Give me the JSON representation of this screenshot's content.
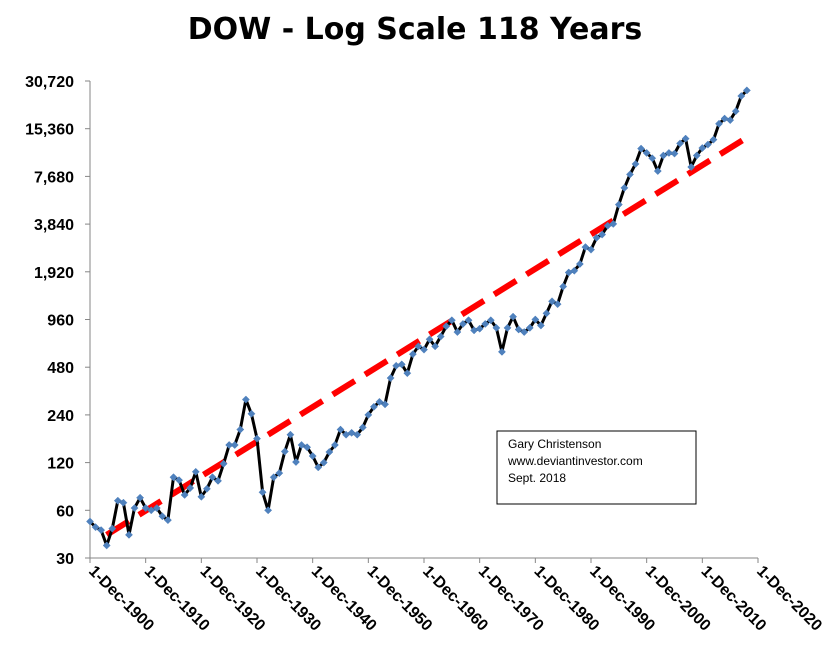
{
  "chart_data": {
    "type": "line",
    "title": "DOW - Log Scale 118 Years",
    "xlabel": "",
    "ylabel": "",
    "y_scale": "log2",
    "ylim": [
      30,
      30720
    ],
    "xlim": [
      "1-Dec-1900",
      "1-Dec-2020"
    ],
    "y_ticks": [
      {
        "value": 30,
        "label": "30"
      },
      {
        "value": 60,
        "label": "60"
      },
      {
        "value": 120,
        "label": "120"
      },
      {
        "value": 240,
        "label": "240"
      },
      {
        "value": 480,
        "label": "480"
      },
      {
        "value": 960,
        "label": "960"
      },
      {
        "value": 1920,
        "label": "1,920"
      },
      {
        "value": 3840,
        "label": "3,840"
      },
      {
        "value": 7680,
        "label": "7,680"
      },
      {
        "value": 15360,
        "label": "15,360"
      },
      {
        "value": 30720,
        "label": "30,720"
      }
    ],
    "x_ticks": [
      {
        "value": "1-Dec-1900",
        "label": "1-Dec-1900"
      },
      {
        "value": "1-Dec-1910",
        "label": "1-Dec-1910"
      },
      {
        "value": "1-Dec-1920",
        "label": "1-Dec-1920"
      },
      {
        "value": "1-Dec-1930",
        "label": "1-Dec-1930"
      },
      {
        "value": "1-Dec-1940",
        "label": "1-Dec-1940"
      },
      {
        "value": "1-Dec-1950",
        "label": "1-Dec-1950"
      },
      {
        "value": "1-Dec-1960",
        "label": "1-Dec-1960"
      },
      {
        "value": "1-Dec-1970",
        "label": "1-Dec-1970"
      },
      {
        "value": "1-Dec-1980",
        "label": "1-Dec-1980"
      },
      {
        "value": "1-Dec-1990",
        "label": "1-Dec-1990"
      },
      {
        "value": "1-Dec-2000",
        "label": "1-Dec-2000"
      },
      {
        "value": "1-Dec-2010",
        "label": "1-Dec-2010"
      },
      {
        "value": "1-Dec-2020",
        "label": "1-Dec-2020"
      }
    ],
    "grid": false,
    "series": [
      {
        "color": "#000000",
        "marker_color": "#4F81BD",
        "marker": "diamond",
        "x": [
          1900,
          1901,
          1902,
          1903,
          1904,
          1905,
          1906,
          1907,
          1908,
          1909,
          1910,
          1911,
          1912,
          1913,
          1914,
          1915,
          1916,
          1917,
          1918,
          1919,
          1920,
          1921,
          1922,
          1923,
          1924,
          1925,
          1926,
          1927,
          1928,
          1929,
          1930,
          1931,
          1932,
          1933,
          1934,
          1935,
          1936,
          1937,
          1938,
          1939,
          1940,
          1941,
          1942,
          1943,
          1944,
          1945,
          1946,
          1947,
          1948,
          1949,
          1950,
          1951,
          1952,
          1953,
          1954,
          1955,
          1956,
          1957,
          1958,
          1959,
          1960,
          1961,
          1962,
          1963,
          1964,
          1965,
          1966,
          1967,
          1968,
          1969,
          1970,
          1971,
          1972,
          1973,
          1974,
          1975,
          1976,
          1977,
          1978,
          1979,
          1980,
          1981,
          1982,
          1983,
          1984,
          1985,
          1986,
          1987,
          1988,
          1989,
          1990,
          1991,
          1992,
          1993,
          1994,
          1995,
          1996,
          1997,
          1998,
          1999,
          2000,
          2001,
          2002,
          2003,
          2004,
          2005,
          2006,
          2007,
          2008,
          2009,
          2010,
          2011,
          2012,
          2013,
          2014,
          2015,
          2016,
          2017,
          2018
        ],
        "values": [
          51,
          47,
          45,
          36,
          46,
          69,
          67,
          42,
          62,
          72,
          62,
          60,
          62,
          55,
          52,
          97,
          93,
          75,
          83,
          105,
          73,
          82,
          97,
          92,
          118,
          155,
          155,
          194,
          300,
          244,
          170,
          78,
          60,
          97,
          103,
          141,
          180,
          121,
          155,
          150,
          132,
          112,
          120,
          140,
          155,
          194,
          180,
          185,
          180,
          200,
          240,
          270,
          290,
          280,
          410,
          490,
          500,
          440,
          580,
          650,
          620,
          720,
          650,
          750,
          870,
          950,
          800,
          900,
          950,
          820,
          840,
          900,
          950,
          850,
          600,
          850,
          1000,
          830,
          800,
          850,
          960,
          880,
          1050,
          1250,
          1200,
          1550,
          1900,
          1950,
          2150,
          2750,
          2650,
          3150,
          3300,
          3750,
          3850,
          5100,
          6500,
          7900,
          9200,
          11500,
          10800,
          10000,
          8300,
          10400,
          10800,
          10700,
          12400,
          13300,
          8800,
          10400,
          11600,
          12200,
          13100,
          16500,
          17800,
          17400,
          19800,
          24700,
          26800
        ]
      },
      {
        "color": "#FF0000",
        "style": "dashed",
        "x": [
          1903,
          2018
        ],
        "values": [
          42,
          13500
        ]
      }
    ],
    "annotations": [
      {
        "lines": [
          "Gary Christenson",
          "www.deviantinvestor.com",
          "Sept. 2018"
        ]
      }
    ]
  }
}
